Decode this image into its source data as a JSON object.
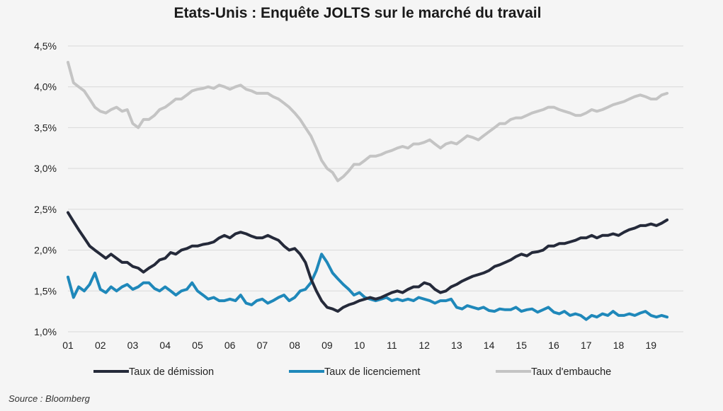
{
  "chart_data": {
    "type": "line",
    "title": "Etats-Unis : Enquête JOLTS sur le marché du travail",
    "source": "Source : Bloomberg",
    "xlabel": "",
    "ylabel": "",
    "ylim": [
      1.0,
      4.5
    ],
    "y_ticks": [
      1.0,
      1.5,
      2.0,
      2.5,
      3.0,
      3.5,
      4.0,
      4.5
    ],
    "y_tick_labels": [
      "1,0%",
      "1,5%",
      "2,0%",
      "2,5%",
      "3,0%",
      "3,5%",
      "4,0%",
      "4,5%"
    ],
    "x_tick_labels": [
      "01",
      "02",
      "03",
      "04",
      "05",
      "06",
      "07",
      "08",
      "09",
      "10",
      "11",
      "12",
      "13",
      "14",
      "15",
      "16",
      "17",
      "18",
      "19"
    ],
    "x_range": [
      2001.0,
      2020.0
    ],
    "grid": true,
    "legend_position": "bottom",
    "series": [
      {
        "name": "Taux de démission",
        "color": "#252a3a",
        "x": [
          2001.0,
          2001.17,
          2001.33,
          2001.5,
          2001.67,
          2001.83,
          2002.0,
          2002.17,
          2002.33,
          2002.5,
          2002.67,
          2002.83,
          2003.0,
          2003.17,
          2003.33,
          2003.5,
          2003.67,
          2003.83,
          2004.0,
          2004.17,
          2004.33,
          2004.5,
          2004.67,
          2004.83,
          2005.0,
          2005.17,
          2005.33,
          2005.5,
          2005.67,
          2005.83,
          2006.0,
          2006.17,
          2006.33,
          2006.5,
          2006.67,
          2006.83,
          2007.0,
          2007.17,
          2007.33,
          2007.5,
          2007.67,
          2007.83,
          2008.0,
          2008.17,
          2008.33,
          2008.5,
          2008.67,
          2008.83,
          2009.0,
          2009.17,
          2009.33,
          2009.5,
          2009.67,
          2009.83,
          2010.0,
          2010.17,
          2010.33,
          2010.5,
          2010.67,
          2010.83,
          2011.0,
          2011.17,
          2011.33,
          2011.5,
          2011.67,
          2011.83,
          2012.0,
          2012.17,
          2012.33,
          2012.5,
          2012.67,
          2012.83,
          2013.0,
          2013.17,
          2013.33,
          2013.5,
          2013.67,
          2013.83,
          2014.0,
          2014.17,
          2014.33,
          2014.5,
          2014.67,
          2014.83,
          2015.0,
          2015.17,
          2015.33,
          2015.5,
          2015.67,
          2015.83,
          2016.0,
          2016.17,
          2016.33,
          2016.5,
          2016.67,
          2016.83,
          2017.0,
          2017.17,
          2017.33,
          2017.5,
          2017.67,
          2017.83,
          2018.0,
          2018.17,
          2018.33,
          2018.5,
          2018.67,
          2018.83,
          2019.0,
          2019.17,
          2019.33,
          2019.5
        ],
        "values": [
          2.46,
          2.35,
          2.25,
          2.15,
          2.05,
          2.0,
          1.95,
          1.9,
          1.95,
          1.9,
          1.85,
          1.85,
          1.8,
          1.78,
          1.73,
          1.78,
          1.82,
          1.88,
          1.9,
          1.97,
          1.95,
          2.0,
          2.02,
          2.05,
          2.05,
          2.07,
          2.08,
          2.1,
          2.15,
          2.18,
          2.15,
          2.2,
          2.22,
          2.2,
          2.17,
          2.15,
          2.15,
          2.18,
          2.15,
          2.12,
          2.05,
          2.0,
          2.02,
          1.95,
          1.85,
          1.65,
          1.5,
          1.38,
          1.3,
          1.28,
          1.25,
          1.3,
          1.33,
          1.35,
          1.38,
          1.4,
          1.42,
          1.4,
          1.42,
          1.45,
          1.48,
          1.5,
          1.48,
          1.52,
          1.55,
          1.55,
          1.6,
          1.58,
          1.52,
          1.48,
          1.5,
          1.55,
          1.58,
          1.62,
          1.65,
          1.68,
          1.7,
          1.72,
          1.75,
          1.8,
          1.82,
          1.85,
          1.88,
          1.92,
          1.95,
          1.93,
          1.97,
          1.98,
          2.0,
          2.05,
          2.05,
          2.08,
          2.08,
          2.1,
          2.12,
          2.15,
          2.15,
          2.18,
          2.15,
          2.18,
          2.18,
          2.2,
          2.18,
          2.22,
          2.25,
          2.27,
          2.3,
          2.3,
          2.32,
          2.3,
          2.33,
          2.37
        ]
      },
      {
        "name": "Taux de licenciement",
        "color": "#1f88ba",
        "x": [
          2001.0,
          2001.17,
          2001.33,
          2001.5,
          2001.67,
          2001.83,
          2002.0,
          2002.17,
          2002.33,
          2002.5,
          2002.67,
          2002.83,
          2003.0,
          2003.17,
          2003.33,
          2003.5,
          2003.67,
          2003.83,
          2004.0,
          2004.17,
          2004.33,
          2004.5,
          2004.67,
          2004.83,
          2005.0,
          2005.17,
          2005.33,
          2005.5,
          2005.67,
          2005.83,
          2006.0,
          2006.17,
          2006.33,
          2006.5,
          2006.67,
          2006.83,
          2007.0,
          2007.17,
          2007.33,
          2007.5,
          2007.67,
          2007.83,
          2008.0,
          2008.17,
          2008.33,
          2008.5,
          2008.67,
          2008.83,
          2009.0,
          2009.17,
          2009.33,
          2009.5,
          2009.67,
          2009.83,
          2010.0,
          2010.17,
          2010.33,
          2010.5,
          2010.67,
          2010.83,
          2011.0,
          2011.17,
          2011.33,
          2011.5,
          2011.67,
          2011.83,
          2012.0,
          2012.17,
          2012.33,
          2012.5,
          2012.67,
          2012.83,
          2013.0,
          2013.17,
          2013.33,
          2013.5,
          2013.67,
          2013.83,
          2014.0,
          2014.17,
          2014.33,
          2014.5,
          2014.67,
          2014.83,
          2015.0,
          2015.17,
          2015.33,
          2015.5,
          2015.67,
          2015.83,
          2016.0,
          2016.17,
          2016.33,
          2016.5,
          2016.67,
          2016.83,
          2017.0,
          2017.17,
          2017.33,
          2017.5,
          2017.67,
          2017.83,
          2018.0,
          2018.17,
          2018.33,
          2018.5,
          2018.67,
          2018.83,
          2019.0,
          2019.17,
          2019.33,
          2019.5
        ],
        "values": [
          1.67,
          1.42,
          1.55,
          1.5,
          1.58,
          1.72,
          1.52,
          1.48,
          1.55,
          1.5,
          1.55,
          1.58,
          1.52,
          1.55,
          1.6,
          1.6,
          1.53,
          1.5,
          1.55,
          1.5,
          1.45,
          1.5,
          1.52,
          1.6,
          1.5,
          1.45,
          1.4,
          1.42,
          1.38,
          1.38,
          1.4,
          1.38,
          1.45,
          1.35,
          1.33,
          1.38,
          1.4,
          1.35,
          1.38,
          1.42,
          1.45,
          1.38,
          1.42,
          1.5,
          1.52,
          1.6,
          1.75,
          1.95,
          1.85,
          1.72,
          1.65,
          1.58,
          1.52,
          1.45,
          1.48,
          1.42,
          1.4,
          1.38,
          1.4,
          1.42,
          1.38,
          1.4,
          1.38,
          1.4,
          1.38,
          1.42,
          1.4,
          1.38,
          1.35,
          1.38,
          1.38,
          1.4,
          1.3,
          1.28,
          1.32,
          1.3,
          1.28,
          1.3,
          1.26,
          1.25,
          1.28,
          1.27,
          1.27,
          1.3,
          1.25,
          1.27,
          1.28,
          1.24,
          1.27,
          1.3,
          1.24,
          1.22,
          1.25,
          1.2,
          1.22,
          1.2,
          1.15,
          1.2,
          1.18,
          1.22,
          1.2,
          1.25,
          1.2,
          1.2,
          1.22,
          1.2,
          1.23,
          1.25,
          1.2,
          1.18,
          1.2,
          1.18
        ]
      },
      {
        "name": "Taux d'embauche",
        "color": "#c4c4c4",
        "x": [
          2001.0,
          2001.17,
          2001.33,
          2001.5,
          2001.67,
          2001.83,
          2002.0,
          2002.17,
          2002.33,
          2002.5,
          2002.67,
          2002.83,
          2003.0,
          2003.17,
          2003.33,
          2003.5,
          2003.67,
          2003.83,
          2004.0,
          2004.17,
          2004.33,
          2004.5,
          2004.67,
          2004.83,
          2005.0,
          2005.17,
          2005.33,
          2005.5,
          2005.67,
          2005.83,
          2006.0,
          2006.17,
          2006.33,
          2006.5,
          2006.67,
          2006.83,
          2007.0,
          2007.17,
          2007.33,
          2007.5,
          2007.67,
          2007.83,
          2008.0,
          2008.17,
          2008.33,
          2008.5,
          2008.67,
          2008.83,
          2009.0,
          2009.17,
          2009.33,
          2009.5,
          2009.67,
          2009.83,
          2010.0,
          2010.17,
          2010.33,
          2010.5,
          2010.67,
          2010.83,
          2011.0,
          2011.17,
          2011.33,
          2011.5,
          2011.67,
          2011.83,
          2012.0,
          2012.17,
          2012.33,
          2012.5,
          2012.67,
          2012.83,
          2013.0,
          2013.17,
          2013.33,
          2013.5,
          2013.67,
          2013.83,
          2014.0,
          2014.17,
          2014.33,
          2014.5,
          2014.67,
          2014.83,
          2015.0,
          2015.17,
          2015.33,
          2015.5,
          2015.67,
          2015.83,
          2016.0,
          2016.17,
          2016.33,
          2016.5,
          2016.67,
          2016.83,
          2017.0,
          2017.17,
          2017.33,
          2017.5,
          2017.67,
          2017.83,
          2018.0,
          2018.17,
          2018.33,
          2018.5,
          2018.67,
          2018.83,
          2019.0,
          2019.17,
          2019.33,
          2019.5
        ],
        "values": [
          4.3,
          4.05,
          4.0,
          3.95,
          3.85,
          3.75,
          3.7,
          3.68,
          3.72,
          3.75,
          3.7,
          3.72,
          3.55,
          3.5,
          3.6,
          3.6,
          3.65,
          3.72,
          3.75,
          3.8,
          3.85,
          3.85,
          3.9,
          3.95,
          3.97,
          3.98,
          4.0,
          3.98,
          4.02,
          4.0,
          3.97,
          4.0,
          4.02,
          3.97,
          3.95,
          3.92,
          3.92,
          3.92,
          3.88,
          3.85,
          3.8,
          3.75,
          3.68,
          3.6,
          3.5,
          3.4,
          3.25,
          3.1,
          3.0,
          2.95,
          2.85,
          2.9,
          2.97,
          3.05,
          3.05,
          3.1,
          3.15,
          3.15,
          3.17,
          3.2,
          3.22,
          3.25,
          3.27,
          3.25,
          3.3,
          3.3,
          3.32,
          3.35,
          3.3,
          3.25,
          3.3,
          3.32,
          3.3,
          3.35,
          3.4,
          3.38,
          3.35,
          3.4,
          3.45,
          3.5,
          3.55,
          3.55,
          3.6,
          3.62,
          3.62,
          3.65,
          3.68,
          3.7,
          3.72,
          3.75,
          3.75,
          3.72,
          3.7,
          3.68,
          3.65,
          3.65,
          3.68,
          3.72,
          3.7,
          3.72,
          3.75,
          3.78,
          3.8,
          3.82,
          3.85,
          3.88,
          3.9,
          3.88,
          3.85,
          3.85,
          3.9,
          3.92
        ]
      }
    ]
  }
}
